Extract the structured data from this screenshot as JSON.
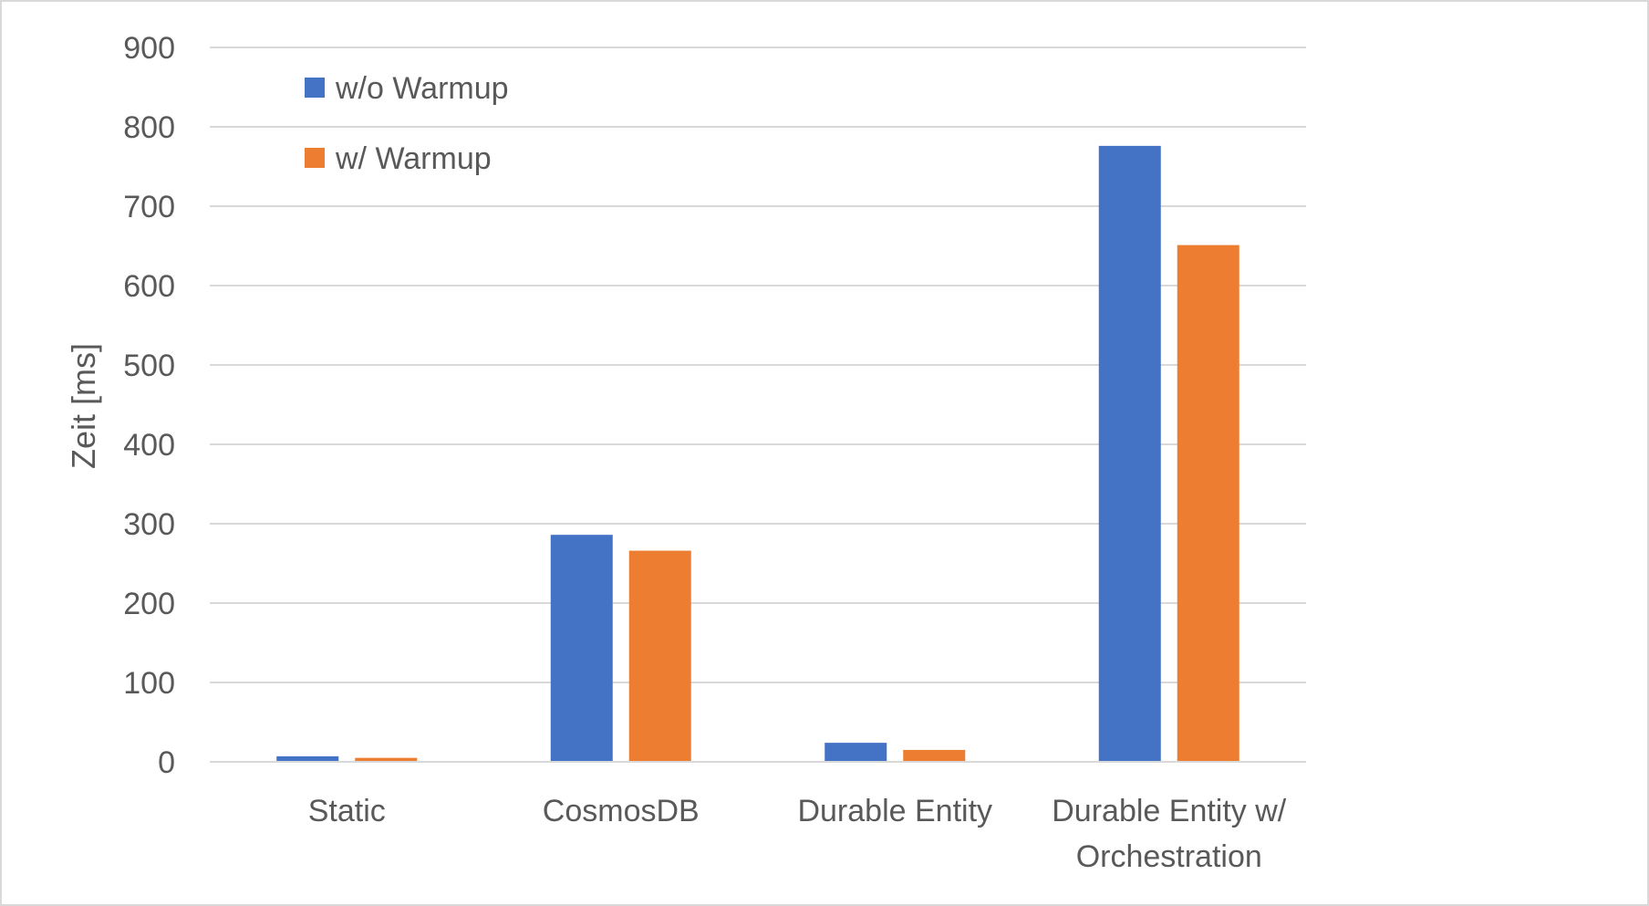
{
  "chart_data": {
    "type": "bar",
    "title": "",
    "xlabel": "",
    "ylabel": "Zeit [ms]",
    "ylim": [
      0,
      900
    ],
    "yticks": [
      0,
      100,
      200,
      300,
      400,
      500,
      600,
      700,
      800,
      900
    ],
    "grid": true,
    "legend_position": "top-left",
    "categories": [
      [
        "Static"
      ],
      [
        "CosmosDB"
      ],
      [
        "Durable Entity"
      ],
      [
        "Durable Entity w/",
        "Orchestration"
      ]
    ],
    "series": [
      {
        "name": "w/o Warmup",
        "color": "#4472c4",
        "values": [
          7,
          286,
          24,
          776
        ]
      },
      {
        "name": "w/ Warmup",
        "color": "#ed7d31",
        "values": [
          5,
          266,
          15,
          651
        ]
      }
    ]
  }
}
